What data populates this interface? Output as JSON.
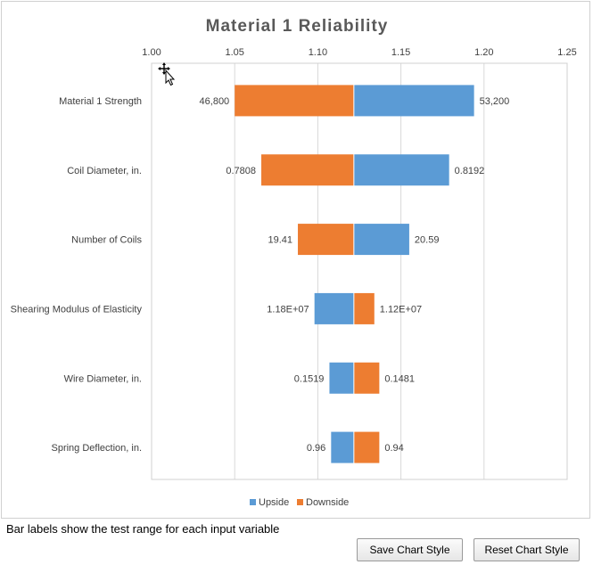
{
  "chart_data": {
    "type": "bar",
    "orientation": "horizontal",
    "title": "Material 1 Reliability",
    "xlim": [
      1.0,
      1.25
    ],
    "xticks": [
      "1.00",
      "1.05",
      "1.10",
      "1.15",
      "1.20",
      "1.25"
    ],
    "baseline": 1.1217,
    "categories": [
      "Material 1 Strength",
      "Coil Diameter, in.",
      "Number of Coils",
      "Shearing Modulus of Elasticity",
      "Wire Diameter, in.",
      "Spring Deflection, in."
    ],
    "series": [
      {
        "name": "Upside",
        "color": "#5b9bd5",
        "values": [
          1.194,
          1.179,
          1.155,
          1.098,
          1.107,
          1.108
        ],
        "labels": [
          "53,200",
          "0.8192",
          "20.59",
          "1.18E+07",
          "0.1519",
          "0.96"
        ]
      },
      {
        "name": "Downside",
        "color": "#ed7d31",
        "values": [
          1.05,
          1.066,
          1.088,
          1.134,
          1.137,
          1.137
        ],
        "labels": [
          "46,800",
          "0.7808",
          "19.41",
          "1.12E+07",
          "0.1481",
          "0.94"
        ]
      }
    ],
    "legend": [
      "Upside",
      "Downside"
    ],
    "legend_position": "bottom"
  },
  "caption": "Bar labels show the test range for each input variable",
  "buttons": {
    "save": "Save Chart Style",
    "reset": "Reset Chart Style"
  }
}
